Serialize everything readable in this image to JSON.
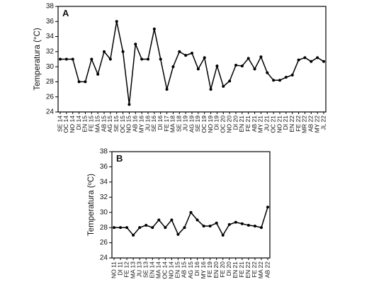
{
  "chart_data": [
    {
      "type": "line",
      "label": "A",
      "y_label": "Temperatura (°C)",
      "categories": [
        "SE 14",
        "OC 14",
        "NO 14",
        "DI 14",
        "EN 15",
        "FE 15",
        "MA 15",
        "AB 15",
        "AG 15",
        "SE 15",
        "OC 15",
        "NO 15",
        "AB 16",
        "MY 16",
        "JU 16",
        "SE 16",
        "DI 16",
        "FE 17",
        "MA 18",
        "SE 18",
        "JU 19",
        "AG 19",
        "SE 19",
        "OC 19",
        "NO 19",
        "DI 19",
        "OC 20",
        "NO 20",
        "DI 20",
        "EN 21",
        "FE 21",
        "AB 21",
        "MY 21",
        "JU 21",
        "OC 21",
        "NO 21",
        "DI 21",
        "EN 22",
        "FE 22",
        "MR 22",
        "AB 22",
        "MY 22",
        "JL 22"
      ],
      "values": [
        31,
        31,
        31,
        28,
        28,
        31,
        29,
        32,
        31,
        36,
        32,
        25,
        33,
        31,
        31,
        35,
        31,
        27,
        30,
        32,
        31.5,
        31.8,
        29.7,
        31.2,
        27,
        30.1,
        27.4,
        28.1,
        30.2,
        30.1,
        31.1,
        29.7,
        31.3,
        29.2,
        28.2,
        28.2,
        28.6,
        28.9,
        30.9,
        31.2,
        30.7,
        31.2,
        30.7
      ],
      "color": "#000000",
      "ylim": [
        24,
        38
      ],
      "yticks": [
        24,
        26,
        28,
        30,
        32,
        34,
        36,
        38
      ]
    },
    {
      "type": "line",
      "label": "B",
      "y_label": "Temperatura (ºC)",
      "categories": [
        "NO 11",
        "DI 11",
        "FE 12",
        "MA 13",
        "JU 13",
        "SE 13",
        "EN 14",
        "MA 14",
        "OC 14",
        "NO 14",
        "EN 15",
        "AB 15",
        "AG 15",
        "DI 16",
        "MY 16",
        "FE 19",
        "EN 20",
        "FE 20",
        "DI 20",
        "EN 21",
        "FE 21",
        "EN 22",
        "FE 22",
        "MA 22",
        "AB 22"
      ],
      "values": [
        28,
        28,
        28,
        27,
        28,
        28.3,
        28,
        29,
        28,
        29,
        27.1,
        28,
        30,
        29,
        28.2,
        28.2,
        28.6,
        27,
        28.4,
        28.7,
        28.5,
        28.3,
        28.2,
        28,
        30.7
      ],
      "color": "#000000",
      "ylim": [
        24,
        38
      ],
      "yticks": [
        24,
        26,
        28,
        30,
        32,
        34,
        36,
        38
      ]
    }
  ]
}
